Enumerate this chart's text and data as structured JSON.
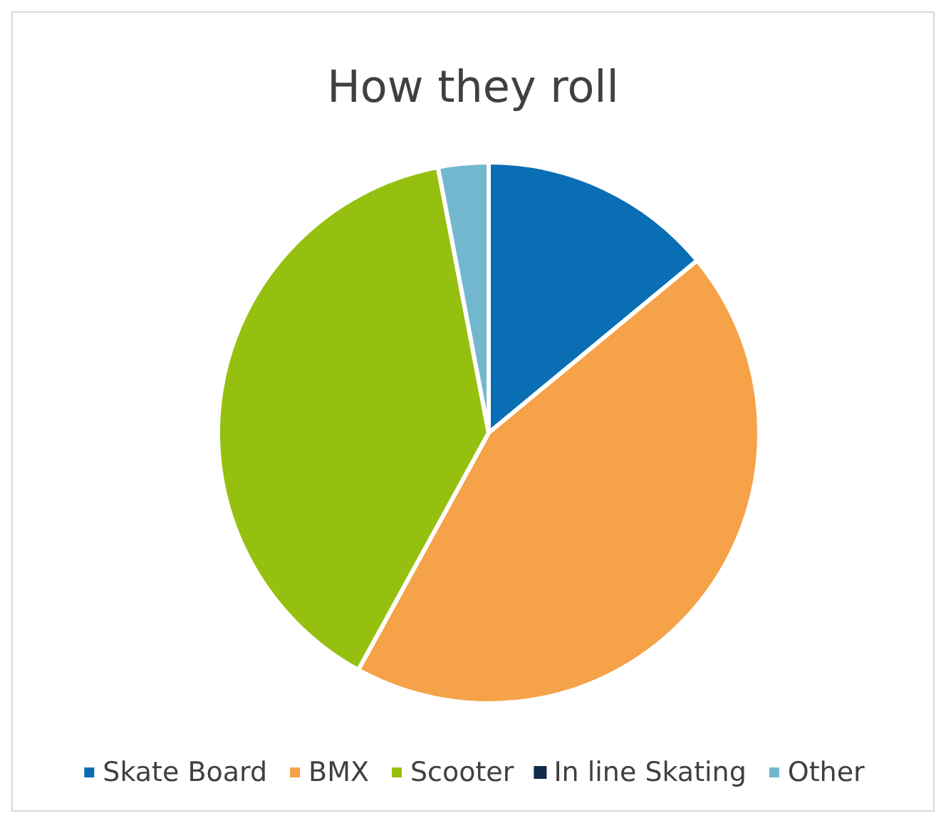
{
  "chart_data": {
    "type": "pie",
    "title": "How they roll",
    "categories": [
      "Skate Board",
      "BMX",
      "Scooter",
      "In line Skating",
      "Other"
    ],
    "values": [
      14,
      44,
      39,
      0,
      3
    ],
    "colors": [
      "#0a6eb4",
      "#f5a248",
      "#95c00f",
      "#0f2a4a",
      "#73b7cf"
    ],
    "legend": "bottom"
  }
}
